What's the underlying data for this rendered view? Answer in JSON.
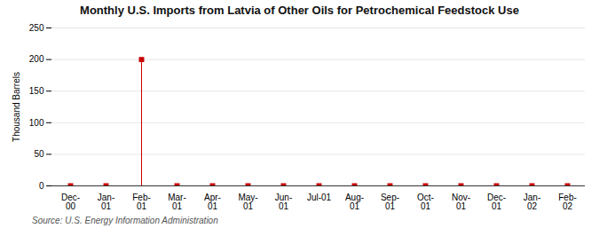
{
  "chart_data": {
    "type": "stem",
    "title": "Monthly U.S. Imports from Latvia of Other Oils for Petrochemical Feedstock Use",
    "ylabel": "Thousand Barrels",
    "source": "Source: U.S. Energy Information Administration",
    "categories": [
      "Dec-\n00",
      "Jan-\n01",
      "Feb-\n01",
      "Mar-\n01",
      "Apr-\n01",
      "May-\n01",
      "Jun-\n01",
      "Jul-01",
      "Aug-\n01",
      "Sep-\n01",
      "Oct-\n01",
      "Nov-\n01",
      "Dec-\n01",
      "Jan-\n02",
      "Feb-\n02"
    ],
    "values": [
      0,
      0,
      200,
      0,
      0,
      0,
      0,
      0,
      0,
      0,
      0,
      0,
      0,
      0,
      0
    ],
    "color": "#CC0000",
    "marker": "square",
    "ylim": [
      0,
      250
    ],
    "yticks": [
      0,
      50,
      100,
      150,
      200,
      250
    ],
    "grid": true
  }
}
